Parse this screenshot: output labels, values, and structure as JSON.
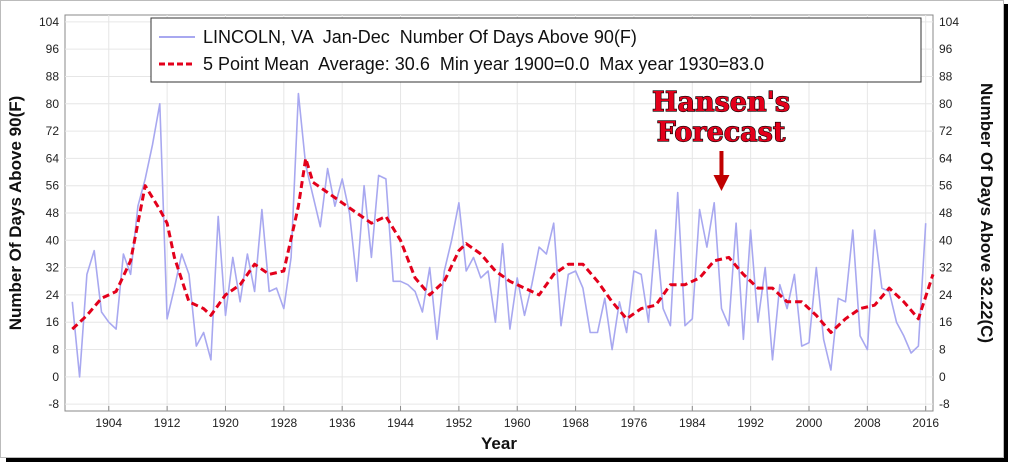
{
  "chart_data": {
    "type": "line",
    "xlabel": "Year",
    "ylabel": "Number Of Days Above 90(F)",
    "ylabel_right": "Number Of Days Above 32.22(C)",
    "xlim": [
      1898,
      2017
    ],
    "ylim": [
      -10,
      106
    ],
    "x_ticks": [
      1904,
      1912,
      1920,
      1928,
      1936,
      1944,
      1952,
      1960,
      1968,
      1976,
      1984,
      1992,
      2000,
      2008,
      2016
    ],
    "y_ticks": [
      -8,
      0,
      8,
      16,
      24,
      32,
      40,
      48,
      56,
      64,
      72,
      80,
      88,
      96,
      104
    ],
    "grid": true,
    "legend_position": "top",
    "series": [
      {
        "name": "LINCOLN, VA  Jan-Dec  Number Of Days Above 90(F)",
        "color": "#a8a8f0",
        "style": "solid",
        "x": [
          1899,
          1900,
          1901,
          1902,
          1903,
          1904,
          1905,
          1906,
          1907,
          1908,
          1909,
          1910,
          1911,
          1912,
          1913,
          1914,
          1915,
          1916,
          1917,
          1918,
          1919,
          1920,
          1921,
          1922,
          1923,
          1924,
          1925,
          1926,
          1927,
          1928,
          1929,
          1930,
          1931,
          1932,
          1933,
          1934,
          1935,
          1936,
          1937,
          1938,
          1939,
          1940,
          1941,
          1942,
          1943,
          1944,
          1945,
          1946,
          1947,
          1948,
          1949,
          1950,
          1951,
          1952,
          1953,
          1954,
          1955,
          1956,
          1957,
          1958,
          1959,
          1960,
          1961,
          1962,
          1963,
          1964,
          1965,
          1966,
          1967,
          1968,
          1969,
          1970,
          1971,
          1972,
          1973,
          1974,
          1975,
          1976,
          1977,
          1978,
          1979,
          1980,
          1981,
          1982,
          1983,
          1984,
          1985,
          1986,
          1987,
          1988,
          1989,
          1990,
          1991,
          1992,
          1993,
          1994,
          1995,
          1996,
          1997,
          1998,
          1999,
          2000,
          2001,
          2002,
          2003,
          2004,
          2005,
          2006,
          2007,
          2008,
          2009,
          2010,
          2011,
          2012,
          2013,
          2014,
          2015,
          2016
        ],
        "y": [
          22,
          0,
          30,
          37,
          19,
          16,
          14,
          36,
          30,
          50,
          58,
          68,
          80,
          17,
          26,
          36,
          30,
          9,
          13,
          5,
          47,
          18,
          35,
          22,
          36,
          25,
          49,
          25,
          26,
          20,
          35,
          83,
          62,
          53,
          44,
          61,
          50,
          58,
          48,
          28,
          56,
          35,
          59,
          58,
          28,
          28,
          27,
          25,
          19,
          32,
          11,
          31,
          40,
          51,
          31,
          35,
          29,
          31,
          16,
          39,
          14,
          29,
          18,
          27,
          38,
          36,
          45,
          15,
          30,
          31,
          26,
          13,
          13,
          23,
          8,
          22,
          13,
          31,
          30,
          16,
          43,
          20,
          15,
          54,
          15,
          17,
          49,
          38,
          51,
          20,
          15,
          45,
          11,
          43,
          16,
          32,
          5,
          27,
          20,
          30,
          9,
          10,
          32,
          11,
          2,
          23,
          22,
          43,
          12,
          8,
          43,
          26,
          25,
          16,
          12,
          7,
          9,
          45
        ],
        "values": [
          22,
          0,
          30,
          37,
          19,
          16,
          14,
          36,
          30,
          50,
          58,
          68,
          80,
          17,
          26,
          36,
          30,
          9,
          13,
          5,
          47,
          18,
          35,
          22,
          36,
          25,
          49,
          25,
          26,
          20,
          35,
          83,
          62,
          53,
          44,
          61,
          50,
          58,
          48,
          28,
          56,
          35,
          59,
          58,
          28,
          28,
          27,
          25,
          19,
          32,
          11,
          31,
          40,
          51,
          31,
          35,
          29,
          31,
          16,
          39,
          14,
          29,
          18,
          27,
          38,
          36,
          45,
          15,
          30,
          31,
          26,
          13,
          13,
          23,
          8,
          22,
          13,
          31,
          30,
          16,
          43,
          20,
          15,
          54,
          15,
          17,
          49,
          38,
          51,
          20,
          15,
          45,
          11,
          43,
          16,
          32,
          5,
          27,
          20,
          30,
          9,
          10,
          32,
          11,
          2,
          23,
          22,
          43,
          12,
          8,
          43,
          26,
          25,
          16,
          12,
          7,
          9,
          45
        ]
      },
      {
        "name": "5 Point Mean  Average: 30.6  Min year 1900=0.0  Max year 1930=83.0",
        "color": "#e3001b",
        "style": "dashed",
        "x": [
          1899,
          1901,
          1903,
          1905,
          1907,
          1909,
          1911,
          1912,
          1913,
          1915,
          1917,
          1918,
          1920,
          1922,
          1924,
          1926,
          1928,
          1930,
          1931,
          1932,
          1934,
          1936,
          1938,
          1940,
          1942,
          1944,
          1946,
          1948,
          1950,
          1952,
          1953,
          1955,
          1957,
          1959,
          1961,
          1963,
          1965,
          1967,
          1969,
          1971,
          1973,
          1975,
          1977,
          1979,
          1981,
          1983,
          1985,
          1987,
          1989,
          1991,
          1993,
          1995,
          1997,
          1999,
          2001,
          2003,
          2005,
          2007,
          2009,
          2011,
          2013,
          2015,
          2017
        ],
        "y": [
          14,
          18,
          23,
          25,
          34,
          56,
          49,
          45,
          35,
          22,
          20,
          18,
          24,
          27,
          33,
          30,
          31,
          50,
          64,
          57,
          54,
          51,
          48,
          45,
          47,
          40,
          29,
          24,
          28,
          37,
          39,
          36,
          31,
          28,
          26,
          24,
          30,
          33,
          33,
          28,
          22,
          17,
          20,
          21,
          27,
          27,
          29,
          34,
          35,
          30,
          26,
          26,
          22,
          22,
          18,
          13,
          17,
          20,
          21,
          26,
          22,
          17,
          30
        ],
        "values": [
          14,
          18,
          23,
          25,
          34,
          56,
          49,
          45,
          35,
          22,
          20,
          18,
          24,
          27,
          33,
          30,
          31,
          50,
          64,
          57,
          54,
          51,
          48,
          45,
          47,
          40,
          29,
          24,
          28,
          37,
          39,
          36,
          31,
          28,
          26,
          24,
          30,
          33,
          33,
          28,
          22,
          17,
          20,
          21,
          27,
          27,
          29,
          34,
          35,
          30,
          26,
          26,
          22,
          22,
          18,
          13,
          17,
          20,
          21,
          26,
          22,
          17,
          30
        ]
      }
    ],
    "annotation": {
      "line1": "Hansen's",
      "line2": "Forecast",
      "arrow_year": 1988,
      "color": "#e3001b"
    }
  }
}
